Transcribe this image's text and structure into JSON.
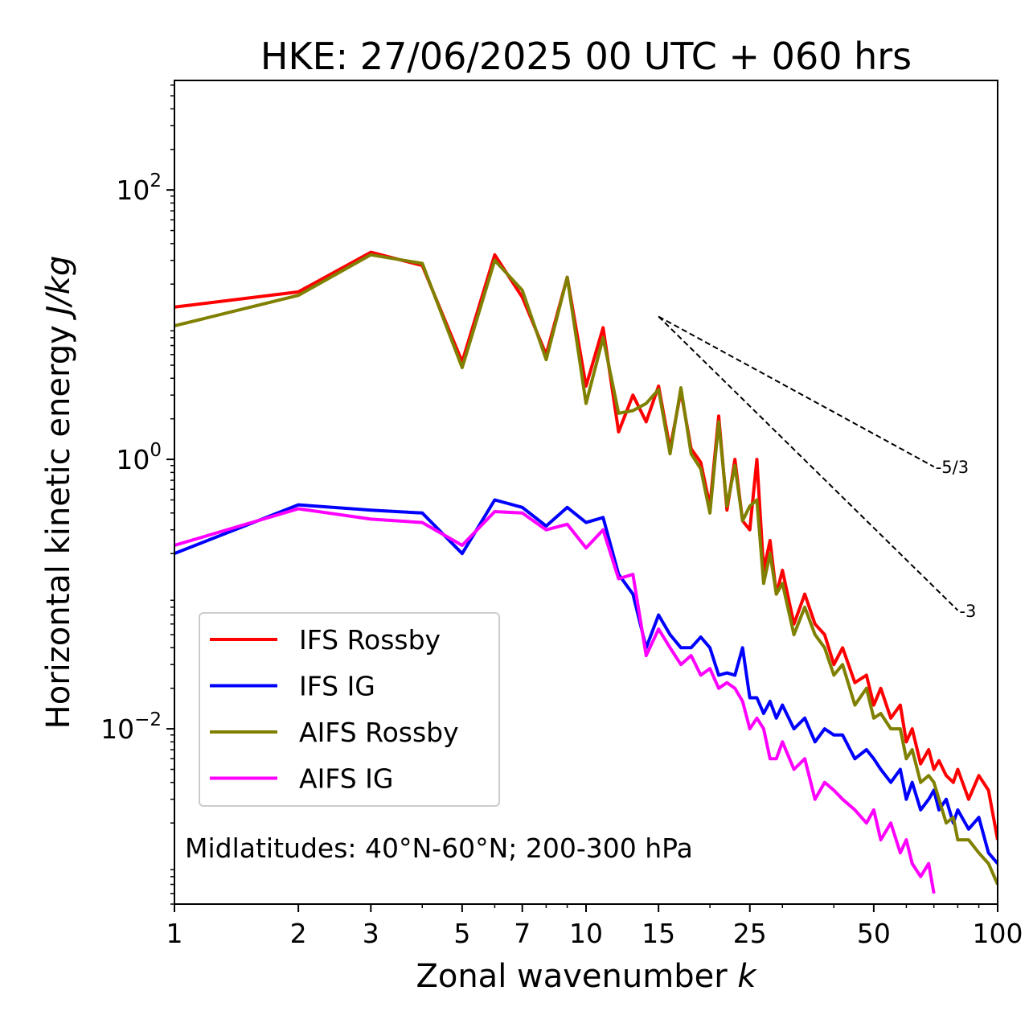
{
  "chart_data": {
    "type": "line",
    "title": "HKE: 27/06/2025 00 UTC + 060 hrs",
    "xlabel": "Zonal wavenumber",
    "xlabel_var": "k",
    "ylabel": "Horizontal kinetic energy",
    "ylabel_unit": "J/kg",
    "x_scale": "log",
    "y_scale": "log",
    "xlim": [
      1,
      100
    ],
    "ylim": [
      0.0005,
      650
    ],
    "x_ticks": [
      1,
      2,
      3,
      5,
      7,
      10,
      15,
      25,
      50,
      100
    ],
    "y_ticks": [
      {
        "value": 100,
        "base": "10",
        "exp": "2"
      },
      {
        "value": 1,
        "base": "10",
        "exp": "0"
      },
      {
        "value": 0.01,
        "base": "10",
        "exp": "−2"
      }
    ],
    "grid": false,
    "legend_position": "lower-left",
    "annotation": "Midlatitudes: 40°N-60°N; 200-300 hPa",
    "reference_lines": [
      {
        "label": "-5/3",
        "slope": -1.6667,
        "x": [
          15,
          70
        ],
        "y0": 11.5
      },
      {
        "label": "-3",
        "slope": -3,
        "x": [
          15,
          80
        ],
        "y0": 11.5
      }
    ],
    "series": [
      {
        "name": "IFS Rossby",
        "color": "#ff0000",
        "x": [
          1,
          2,
          3,
          4,
          5,
          6,
          7,
          8,
          9,
          10,
          11,
          12,
          13,
          14,
          15,
          16,
          17,
          18,
          19,
          20,
          21,
          22,
          23,
          24,
          25,
          26,
          27,
          28,
          29,
          30,
          32,
          34,
          36,
          38,
          40,
          42,
          45,
          48,
          50,
          52,
          55,
          58,
          60,
          62,
          65,
          68,
          70,
          72,
          75,
          78,
          80,
          85,
          90,
          95,
          100
        ],
        "y": [
          13.5,
          17.5,
          34.5,
          27.5,
          5.3,
          33,
          16,
          6,
          22.5,
          3.5,
          9.5,
          1.6,
          3,
          1.9,
          3.5,
          1.2,
          3.2,
          1.2,
          0.95,
          0.45,
          2.1,
          0.42,
          1,
          0.35,
          0.3,
          1,
          0.15,
          0.25,
          0.1,
          0.15,
          0.06,
          0.1,
          0.06,
          0.05,
          0.03,
          0.04,
          0.022,
          0.025,
          0.015,
          0.02,
          0.012,
          0.015,
          0.008,
          0.01,
          0.0055,
          0.007,
          0.005,
          0.0058,
          0.0045,
          0.004,
          0.005,
          0.003,
          0.0045,
          0.0035,
          0.0015
        ]
      },
      {
        "name": "IFS IG",
        "color": "#0000ff",
        "x": [
          1,
          2,
          3,
          4,
          5,
          6,
          7,
          8,
          9,
          10,
          11,
          12,
          13,
          14,
          15,
          16,
          17,
          18,
          19,
          20,
          21,
          22,
          23,
          24,
          25,
          26,
          27,
          28,
          29,
          30,
          32,
          34,
          36,
          38,
          40,
          42,
          45,
          48,
          50,
          52,
          55,
          58,
          60,
          62,
          65,
          68,
          70,
          72,
          75,
          78,
          80,
          85,
          90,
          95,
          100
        ],
        "y": [
          0.2,
          0.46,
          0.42,
          0.4,
          0.2,
          0.5,
          0.44,
          0.32,
          0.44,
          0.34,
          0.37,
          0.14,
          0.1,
          0.04,
          0.07,
          0.05,
          0.04,
          0.04,
          0.048,
          0.04,
          0.025,
          0.026,
          0.025,
          0.04,
          0.017,
          0.017,
          0.013,
          0.016,
          0.012,
          0.015,
          0.01,
          0.012,
          0.008,
          0.01,
          0.009,
          0.009,
          0.006,
          0.007,
          0.006,
          0.005,
          0.004,
          0.005,
          0.003,
          0.004,
          0.0025,
          0.003,
          0.0035,
          0.0025,
          0.003,
          0.002,
          0.0025,
          0.0018,
          0.0022,
          0.0012,
          0.001
        ]
      },
      {
        "name": "AIFS Rossby",
        "color": "#808000",
        "x": [
          1,
          2,
          3,
          4,
          5,
          6,
          7,
          8,
          9,
          10,
          11,
          12,
          13,
          14,
          15,
          16,
          17,
          18,
          19,
          20,
          21,
          22,
          23,
          24,
          25,
          26,
          27,
          28,
          29,
          30,
          32,
          34,
          36,
          38,
          40,
          42,
          45,
          48,
          50,
          52,
          55,
          58,
          60,
          62,
          65,
          68,
          70,
          72,
          75,
          78,
          80,
          85,
          90,
          95,
          100
        ],
        "y": [
          9.8,
          16.5,
          33,
          28.5,
          4.8,
          30,
          18,
          5.5,
          22.5,
          2.6,
          8,
          2.2,
          2.3,
          2.6,
          3.3,
          1.1,
          3.4,
          1.1,
          0.85,
          0.4,
          1.9,
          0.45,
          0.9,
          0.35,
          0.45,
          0.5,
          0.12,
          0.2,
          0.1,
          0.12,
          0.05,
          0.08,
          0.05,
          0.04,
          0.025,
          0.03,
          0.015,
          0.02,
          0.012,
          0.013,
          0.01,
          0.01,
          0.006,
          0.007,
          0.004,
          0.0045,
          0.004,
          0.003,
          0.002,
          0.0022,
          0.0015,
          0.0015,
          0.0012,
          0.001,
          0.0007
        ]
      },
      {
        "name": "AIFS IG",
        "color": "#ff00ff",
        "x": [
          1,
          2,
          3,
          4,
          5,
          6,
          7,
          8,
          9,
          10,
          11,
          12,
          13,
          14,
          15,
          16,
          17,
          18,
          19,
          20,
          21,
          22,
          23,
          24,
          25,
          26,
          27,
          28,
          29,
          30,
          32,
          34,
          36,
          38,
          40,
          42,
          45,
          48,
          50,
          52,
          55,
          58,
          60,
          62,
          65,
          68,
          70
        ],
        "y": [
          0.23,
          0.43,
          0.36,
          0.34,
          0.23,
          0.41,
          0.4,
          0.3,
          0.33,
          0.22,
          0.3,
          0.13,
          0.14,
          0.035,
          0.055,
          0.04,
          0.03,
          0.035,
          0.025,
          0.028,
          0.02,
          0.022,
          0.02,
          0.016,
          0.01,
          0.012,
          0.01,
          0.006,
          0.006,
          0.008,
          0.005,
          0.006,
          0.003,
          0.004,
          0.0035,
          0.003,
          0.0025,
          0.002,
          0.0025,
          0.0015,
          0.002,
          0.0012,
          0.0015,
          0.001,
          0.0008,
          0.001,
          0.0006
        ]
      }
    ]
  }
}
